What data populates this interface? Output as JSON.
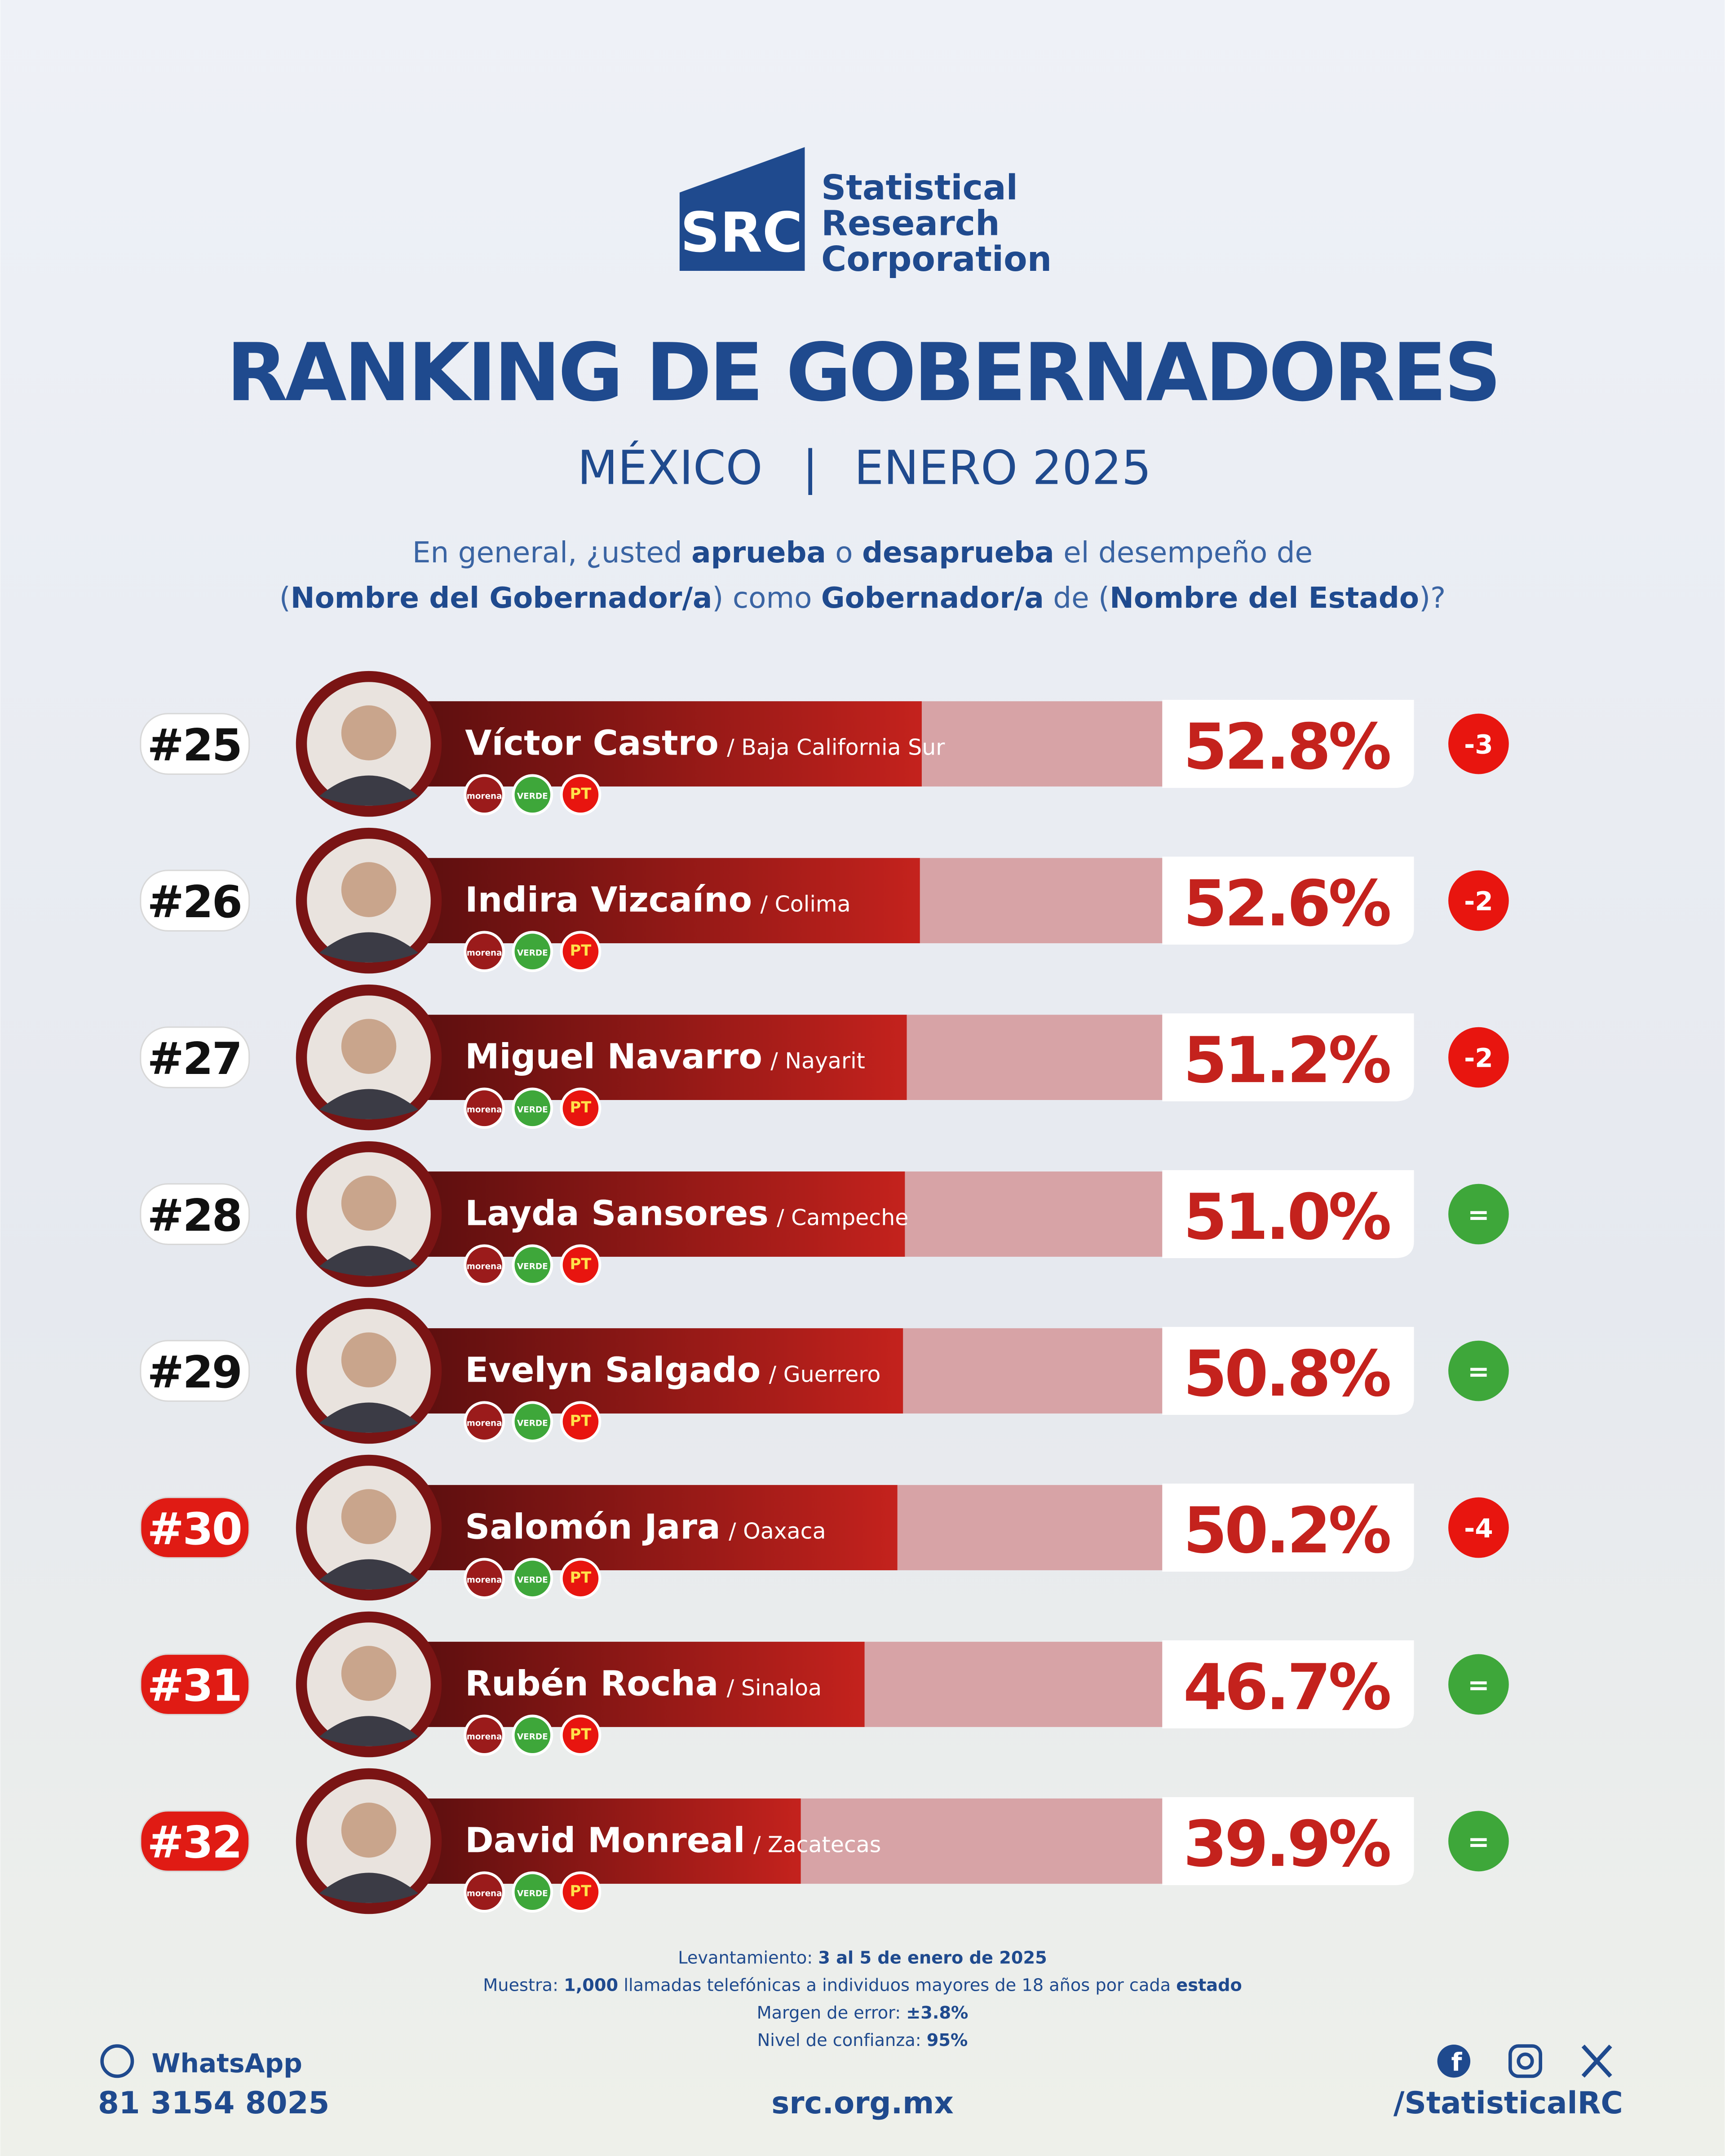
{
  "header": {
    "logo_text": "SRC",
    "org_name": [
      "Statistical",
      "Research",
      "Corporation"
    ]
  },
  "chart_data": {
    "type": "bar",
    "title": "RANKING DE GOBERNADORES",
    "subtitle": [
      "MÉXICO",
      "|",
      "ENERO 2025"
    ],
    "question": [
      [
        {
          "text": "En general, ¿usted "
        },
        {
          "text": "aprueba",
          "bold": true
        },
        {
          "text": " o "
        },
        {
          "text": "desaprueba",
          "bold": true
        },
        {
          "text": " el desempeño de"
        }
      ],
      [
        {
          "text": "("
        },
        {
          "text": "Nombre del Gobernador/a",
          "bold": true
        },
        {
          "text": ") como "
        },
        {
          "text": "Gobernador/a",
          "bold": true
        },
        {
          "text": " de ("
        },
        {
          "text": "Nombre del Estado",
          "bold": true
        },
        {
          "text": ")?"
        }
      ]
    ],
    "ranks": [
      "#25",
      "#26",
      "#27",
      "#28",
      "#29",
      "#30",
      "#31",
      "#32"
    ],
    "rank_colors": [
      "#ffffff",
      "#ffffff",
      "#ffffff",
      "#ffffff",
      "#ffffff",
      "#e01b14",
      "#e01b14",
      "#e01b14"
    ],
    "categories": [
      "Víctor Castro",
      "Indira Vizcaíno",
      "Miguel Navarro",
      "Layda Sansores",
      "Evelyn Salgado",
      "Salomón Jara",
      "Rubén Rocha",
      "David Monreal"
    ],
    "states": [
      "/ Baja California Sur",
      "/ Colima",
      "/ Nayarit",
      "/ Campeche",
      "/ Guerrero",
      "/ Oaxaca",
      "/ Sinaloa",
      "/ Zacatecas"
    ],
    "values": [
      52.8,
      52.6,
      51.2,
      51.0,
      50.8,
      50.2,
      46.7,
      39.9
    ],
    "value_labels": [
      "52.8%",
      "52.6%",
      "51.2%",
      "51.0%",
      "50.8%",
      "50.2%",
      "46.7%",
      "39.9%"
    ],
    "color": "#a01c1c",
    "changes": [
      "-3",
      "-2",
      "-2",
      "=",
      "=",
      "-4",
      "=",
      "="
    ],
    "change_colors": [
      "#e8150f",
      "#e8150f",
      "#e8150f",
      "#3ea73a",
      "#3ea73a",
      "#e8150f",
      "#3ea73a",
      "#3ea73a"
    ],
    "parties": [
      "morena",
      "VERDE",
      "PT"
    ],
    "party_colors": [
      "#9b1b1b",
      "#3ea73a",
      "#e8150f"
    ]
  },
  "methodology": [
    [
      {
        "text": "Levantamiento: "
      },
      {
        "text": "3 al 5 de enero de 2025",
        "bold": true
      }
    ],
    [
      {
        "text": "Muestra: "
      },
      {
        "text": "1,000",
        "bold": true
      },
      {
        "text": " llamadas telefónicas a individuos mayores de 18 años por cada "
      },
      {
        "text": "estado",
        "bold": true
      }
    ],
    [
      {
        "text": "Margen de error: "
      },
      {
        "text": "±3.8%",
        "bold": true
      }
    ],
    [
      {
        "text": "Nivel de confianza: "
      },
      {
        "text": "95%",
        "bold": true
      }
    ]
  ],
  "footer": {
    "whatsapp_label": "WhatsApp",
    "phone": "81 3154 8025",
    "website": "src.org.mx",
    "social_handle": "/StatisticalRC"
  }
}
